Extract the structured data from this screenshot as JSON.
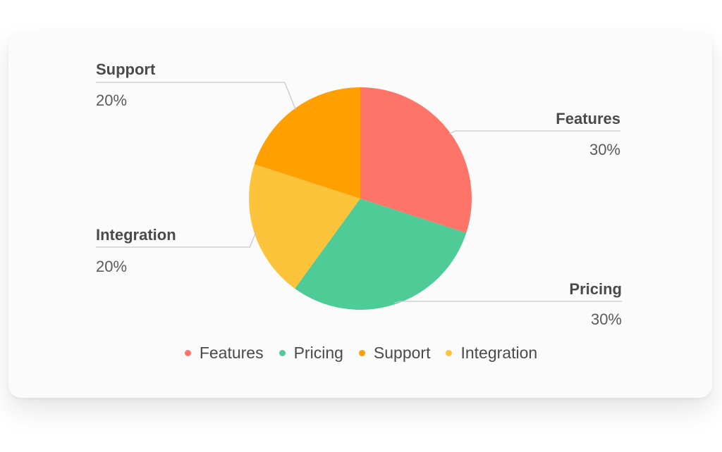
{
  "chart_data": {
    "type": "pie",
    "title": "",
    "slices": [
      {
        "label": "Features",
        "value": 30,
        "value_label": "30%",
        "color": "#ff7468"
      },
      {
        "label": "Pricing",
        "value": 30,
        "value_label": "30%",
        "color": "#4ecb97"
      },
      {
        "label": "Integration",
        "value": 20,
        "value_label": "20%",
        "color": "#fdc33a"
      },
      {
        "label": "Support",
        "value": 20,
        "value_label": "20%",
        "color": "#ff9f00"
      }
    ],
    "legend": {
      "placement": "bottom",
      "items": [
        {
          "label": "Features",
          "color": "#ff7468"
        },
        {
          "label": "Pricing",
          "color": "#4ecb97"
        },
        {
          "label": "Support",
          "color": "#ff9f00"
        },
        {
          "label": "Integration",
          "color": "#fdc33a"
        }
      ]
    },
    "grid": false
  }
}
